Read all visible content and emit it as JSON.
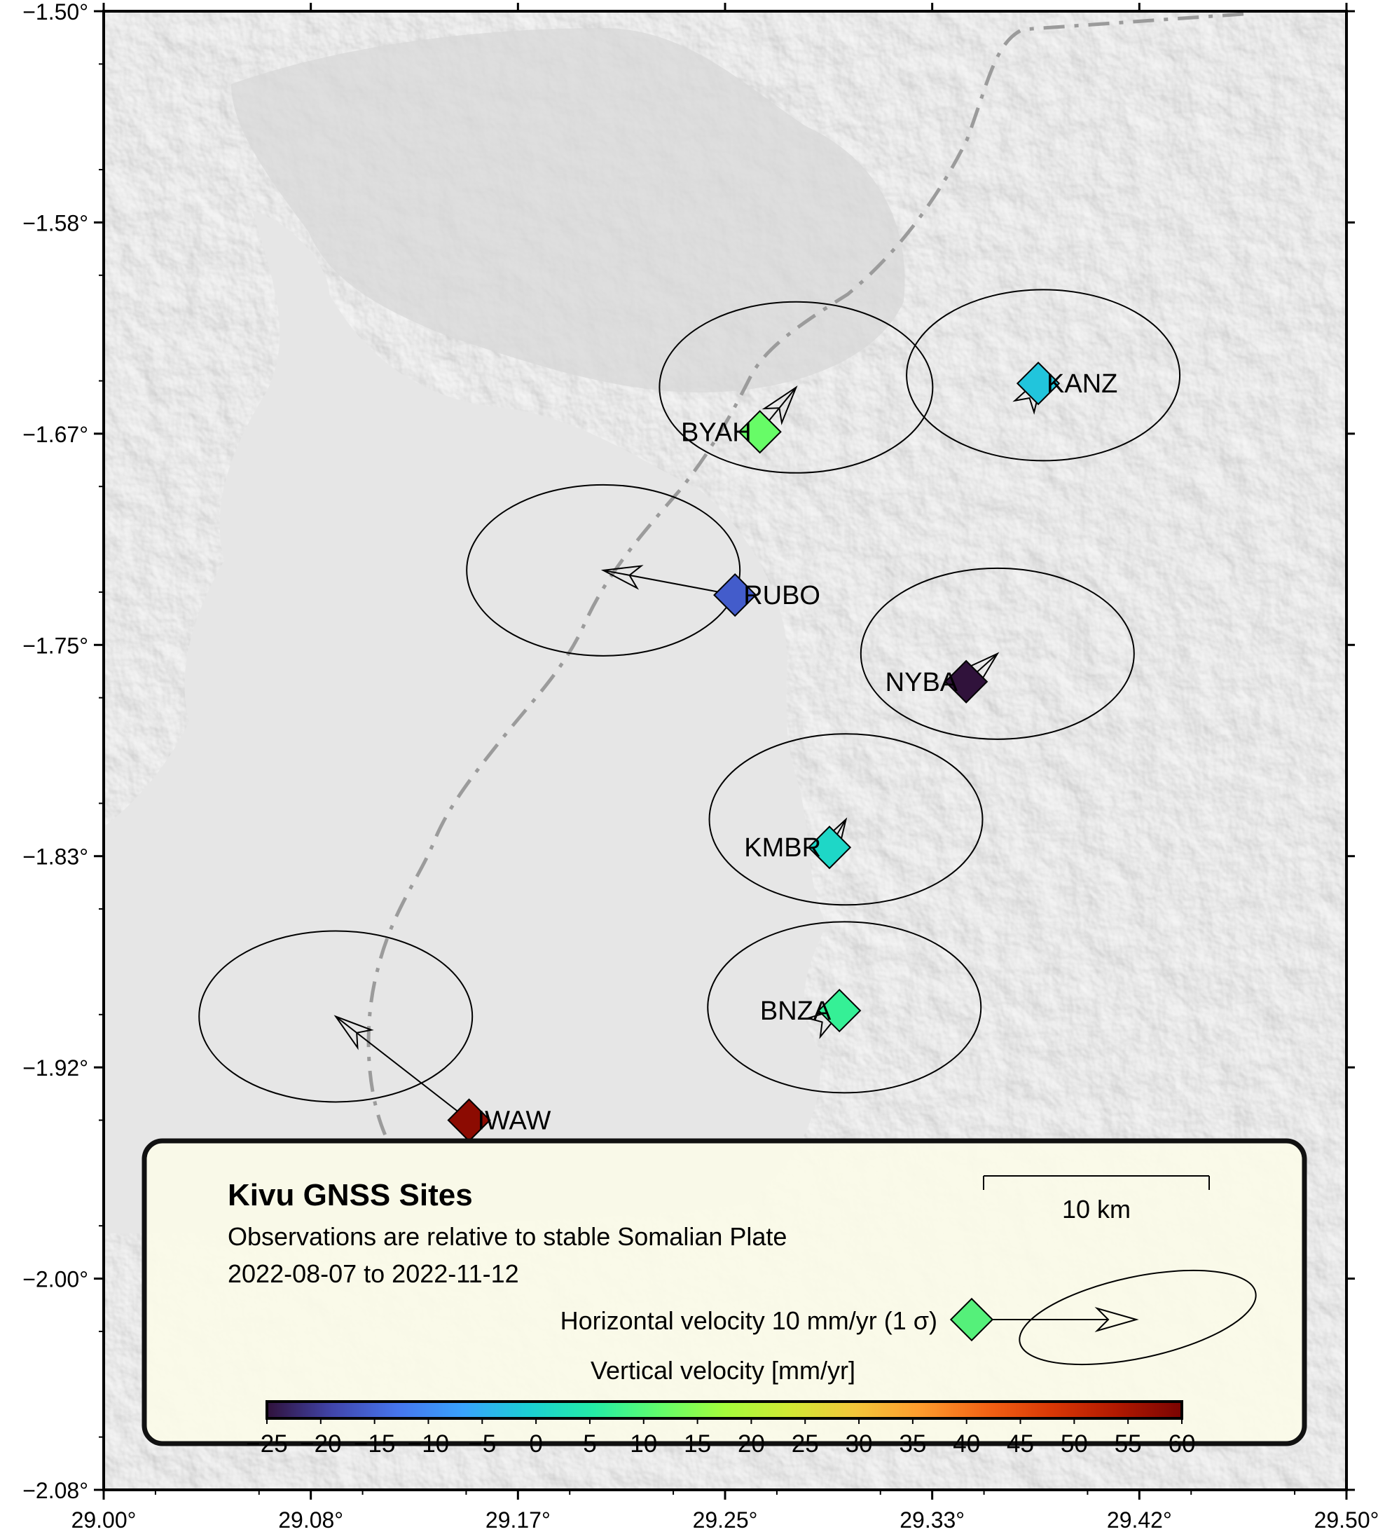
{
  "map": {
    "x_ticks": [
      "29.00°",
      "29.08°",
      "29.17°",
      "29.25°",
      "29.33°",
      "29.42°",
      "29.50°"
    ],
    "y_ticks": [
      "−1.50°",
      "−1.58°",
      "−1.67°",
      "−1.75°",
      "−1.83°",
      "−1.92°",
      "−2.00°",
      "−2.08°"
    ],
    "x_range": [
      29.0,
      29.5
    ],
    "y_range": [
      -1.5,
      -2.08
    ],
    "lake_color": "#e6e6e6",
    "terrain_color": "#c8c8c8"
  },
  "sites": [
    {
      "name": "BYAH",
      "lon": 29.264,
      "lat": -1.665,
      "vertical": 12,
      "ve": 2.2,
      "vn": 2.7,
      "label_side": "left"
    },
    {
      "name": "KANZ",
      "lon": 29.376,
      "lat": -1.646,
      "vertical": -2,
      "ve": 0.3,
      "vn": 0.5,
      "label_side": "right"
    },
    {
      "name": "RUBO",
      "lon": 29.254,
      "lat": -1.729,
      "vertical": -16,
      "ve": -8.0,
      "vn": 1.5,
      "label_side": "right"
    },
    {
      "name": "NYBA",
      "lon": 29.347,
      "lat": -1.763,
      "vertical": -25,
      "ve": 1.9,
      "vn": 1.7,
      "label_side": "left"
    },
    {
      "name": "KMBR",
      "lon": 29.292,
      "lat": -1.828,
      "vertical": 1,
      "ve": 1.0,
      "vn": 1.7,
      "label_side": "left"
    },
    {
      "name": "BNZA",
      "lon": 29.296,
      "lat": -1.892,
      "vertical": 7,
      "ve": 0.3,
      "vn": 0.2,
      "label_side": "left"
    },
    {
      "name": "IWAW",
      "lon": 29.147,
      "lat": -1.935,
      "vertical": 58,
      "ve": -8.1,
      "vn": 6.3,
      "label_side": "right"
    }
  ],
  "legend": {
    "title": "Kivu GNSS Sites",
    "subtitle": "Observations are relative to stable Somalian Plate",
    "dates": "2022-08-07 to 2022-11-12",
    "scale_label": "10 km",
    "hvel_label": "Horizontal velocity 10 mm/yr (1 σ)",
    "vvel_label": "Vertical velocity [mm/yr]",
    "sample_color": "#55f07a",
    "background": "#fbfbe8"
  },
  "colorbar": {
    "min": -25,
    "max": 60,
    "labels": [
      "−25",
      "−20",
      "−15",
      "−10",
      "−5",
      "0",
      "5",
      "10",
      "15",
      "20",
      "25",
      "30",
      "35",
      "40",
      "45",
      "50",
      "55",
      "60"
    ],
    "stops": [
      "#30123b",
      "#4145ab",
      "#4675ed",
      "#39a2fc",
      "#1bcfd4",
      "#24eca6",
      "#61fc6c",
      "#a4fc3b",
      "#d1e834",
      "#f3c63a",
      "#fe9b2d",
      "#f36315",
      "#d93806",
      "#b11901",
      "#7a0402"
    ]
  }
}
